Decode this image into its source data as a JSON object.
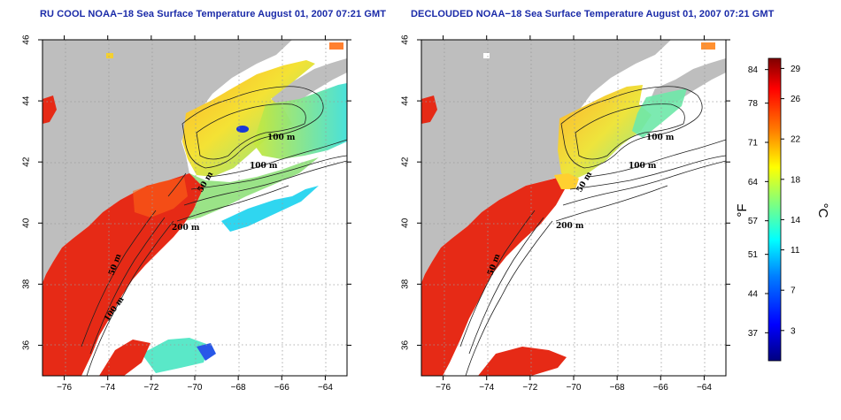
{
  "panels": [
    {
      "id": "left",
      "title": "RU COOL NOAA−18 Sea Surface Temperature August 01, 2007 07:21 GMT",
      "isobath_labels": [
        "100 m",
        "100 m",
        "50 m",
        "200 m",
        "50 m",
        "100 m"
      ]
    },
    {
      "id": "right",
      "title": "DECLOUDED NOAA−18 Sea Surface Temperature August 01, 2007 07:21 GMT",
      "isobath_labels": [
        "100 m",
        "100 m",
        "50 m",
        "200 m",
        "50 m"
      ]
    }
  ],
  "axes": {
    "x_ticks": [
      "−76",
      "−74",
      "−72",
      "−70",
      "−68",
      "−66",
      "−64"
    ],
    "y_ticks": [
      "36",
      "38",
      "40",
      "42",
      "44",
      "46"
    ],
    "lon_range": [
      -77,
      -63
    ],
    "lat_range": [
      35,
      46
    ]
  },
  "colorbar": {
    "f_ticks": [
      "84",
      "78",
      "71",
      "64",
      "57",
      "51",
      "44",
      "37"
    ],
    "c_ticks": [
      "29",
      "26",
      "22",
      "18",
      "14",
      "11",
      "7",
      "3"
    ],
    "f_unit": "°F",
    "c_unit": "°C",
    "range_c": [
      0,
      30
    ],
    "colors": [
      "#00007f",
      "#0000ff",
      "#007fff",
      "#00ffff",
      "#7fff7f",
      "#ffff00",
      "#ff7f00",
      "#ff0000",
      "#7f0000"
    ]
  },
  "colors": {
    "land": "#bebebe",
    "warm": "#e62a16",
    "gulf": "#ff3a10",
    "shelf": "#8fe07a",
    "gom": "#f0c83a"
  }
}
